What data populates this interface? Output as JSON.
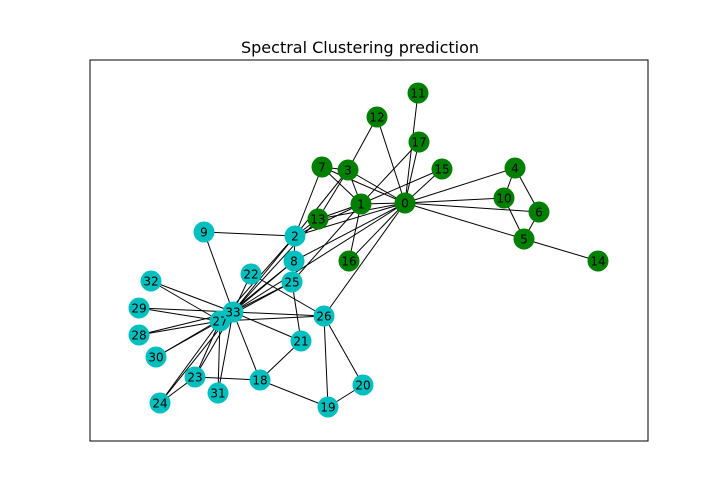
{
  "title": "Spectral Clustering prediction",
  "colors": {
    "cluster_green": "#008000",
    "cluster_cyan": "#00bfbf",
    "edge": "#000000",
    "frame": "#000000"
  },
  "graph": {
    "nodes": [
      {
        "id": "0",
        "cluster": "green"
      },
      {
        "id": "1",
        "cluster": "green"
      },
      {
        "id": "2",
        "cluster": "cyan"
      },
      {
        "id": "3",
        "cluster": "green"
      },
      {
        "id": "4",
        "cluster": "green"
      },
      {
        "id": "5",
        "cluster": "green"
      },
      {
        "id": "6",
        "cluster": "green"
      },
      {
        "id": "7",
        "cluster": "green"
      },
      {
        "id": "8",
        "cluster": "cyan"
      },
      {
        "id": "9",
        "cluster": "cyan"
      },
      {
        "id": "10",
        "cluster": "green"
      },
      {
        "id": "11",
        "cluster": "green"
      },
      {
        "id": "12",
        "cluster": "green"
      },
      {
        "id": "13",
        "cluster": "green"
      },
      {
        "id": "14",
        "cluster": "green"
      },
      {
        "id": "15",
        "cluster": "green"
      },
      {
        "id": "16",
        "cluster": "green"
      },
      {
        "id": "17",
        "cluster": "green"
      },
      {
        "id": "18",
        "cluster": "cyan"
      },
      {
        "id": "19",
        "cluster": "cyan"
      },
      {
        "id": "20",
        "cluster": "cyan"
      },
      {
        "id": "21",
        "cluster": "cyan"
      },
      {
        "id": "22",
        "cluster": "cyan"
      },
      {
        "id": "23",
        "cluster": "cyan"
      },
      {
        "id": "24",
        "cluster": "cyan"
      },
      {
        "id": "25",
        "cluster": "cyan"
      },
      {
        "id": "26",
        "cluster": "cyan"
      },
      {
        "id": "27",
        "cluster": "cyan"
      },
      {
        "id": "28",
        "cluster": "cyan"
      },
      {
        "id": "29",
        "cluster": "cyan"
      },
      {
        "id": "30",
        "cluster": "cyan"
      },
      {
        "id": "31",
        "cluster": "cyan"
      },
      {
        "id": "32",
        "cluster": "cyan"
      },
      {
        "id": "33",
        "cluster": "cyan"
      }
    ],
    "edges": [
      [
        "0",
        "1"
      ],
      [
        "0",
        "3"
      ],
      [
        "0",
        "7"
      ],
      [
        "0",
        "11"
      ],
      [
        "0",
        "12"
      ],
      [
        "0",
        "13"
      ],
      [
        "0",
        "17"
      ],
      [
        "0",
        "4"
      ],
      [
        "0",
        "5"
      ],
      [
        "0",
        "6"
      ],
      [
        "0",
        "10"
      ],
      [
        "0",
        "15"
      ],
      [
        "0",
        "16"
      ],
      [
        "0",
        "2"
      ],
      [
        "0",
        "8"
      ],
      [
        "0",
        "26"
      ],
      [
        "0",
        "33"
      ],
      [
        "1",
        "3"
      ],
      [
        "1",
        "7"
      ],
      [
        "1",
        "13"
      ],
      [
        "1",
        "17"
      ],
      [
        "1",
        "15"
      ],
      [
        "1",
        "16"
      ],
      [
        "1",
        "2"
      ],
      [
        "1",
        "25"
      ],
      [
        "2",
        "3"
      ],
      [
        "2",
        "7"
      ],
      [
        "2",
        "8"
      ],
      [
        "2",
        "9"
      ],
      [
        "2",
        "13"
      ],
      [
        "2",
        "27"
      ],
      [
        "2",
        "33"
      ],
      [
        "3",
        "7"
      ],
      [
        "3",
        "12"
      ],
      [
        "3",
        "13"
      ],
      [
        "4",
        "6"
      ],
      [
        "4",
        "10"
      ],
      [
        "5",
        "6"
      ],
      [
        "5",
        "10"
      ],
      [
        "5",
        "14"
      ],
      [
        "8",
        "27"
      ],
      [
        "8",
        "33"
      ],
      [
        "9",
        "33"
      ],
      [
        "13",
        "33"
      ],
      [
        "18",
        "33"
      ],
      [
        "18",
        "21"
      ],
      [
        "18",
        "23"
      ],
      [
        "18",
        "19"
      ],
      [
        "19",
        "26"
      ],
      [
        "19",
        "20"
      ],
      [
        "20",
        "26"
      ],
      [
        "21",
        "25"
      ],
      [
        "21",
        "33"
      ],
      [
        "22",
        "33"
      ],
      [
        "22",
        "26"
      ],
      [
        "23",
        "33"
      ],
      [
        "23",
        "27"
      ],
      [
        "23",
        "24"
      ],
      [
        "24",
        "27"
      ],
      [
        "24",
        "33"
      ],
      [
        "25",
        "33"
      ],
      [
        "25",
        "27"
      ],
      [
        "26",
        "33"
      ],
      [
        "26",
        "27"
      ],
      [
        "27",
        "28"
      ],
      [
        "27",
        "29"
      ],
      [
        "27",
        "30"
      ],
      [
        "27",
        "31"
      ],
      [
        "27",
        "32"
      ],
      [
        "28",
        "33"
      ],
      [
        "29",
        "33"
      ],
      [
        "30",
        "33"
      ],
      [
        "31",
        "33"
      ],
      [
        "32",
        "33"
      ],
      [
        "27",
        "33"
      ]
    ]
  }
}
